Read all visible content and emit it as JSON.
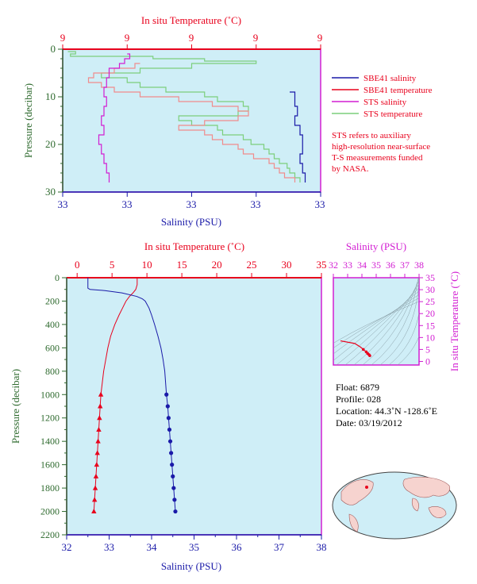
{
  "chart_data": [
    {
      "id": "near-surface",
      "type": "line",
      "top_axis": {
        "label": "In situ Temperature (˚C)",
        "ticks": [
          "9",
          "9",
          "9",
          "9",
          "9"
        ]
      },
      "bottom_axis": {
        "label": "Salinity (PSU)",
        "ticks": [
          "33",
          "33",
          "33",
          "33",
          "33"
        ]
      },
      "left_axis": {
        "label": "Pressure (decibar)",
        "ticks": [
          "0",
          "10",
          "20",
          "30"
        ],
        "range": [
          0,
          30
        ],
        "inverted": true
      },
      "legend": {
        "placement": "right",
        "entries": [
          {
            "label": "SBE41 salinity",
            "color": "#1a1aa8"
          },
          {
            "label": "SBE41 temperature",
            "color": "#e8001c"
          },
          {
            "label": "STS salinity",
            "color": "#d21ed2"
          },
          {
            "label": "STS temperature",
            "color": "#7ccf7c"
          }
        ]
      },
      "note_lines": [
        "STS refers to auxiliary",
        "high-resolution near-surface",
        "T-S measurements funded",
        "by NASA."
      ],
      "series": [
        {
          "name": "STS temperature",
          "color": "#7ccf7c",
          "pressure": [
            0.5,
            1,
            1.5,
            2,
            2.5,
            3,
            4,
            5,
            6,
            7,
            8,
            9,
            10,
            11,
            12,
            13,
            14,
            15,
            16,
            17,
            18,
            19,
            20,
            21,
            22,
            23,
            24,
            25,
            26,
            27,
            28
          ],
          "rel_x": [
            0.02,
            0.05,
            0.03,
            0.35,
            0.55,
            0.75,
            0.5,
            0.3,
            0.15,
            0.25,
            0.3,
            0.4,
            0.55,
            0.6,
            0.7,
            0.72,
            0.68,
            0.45,
            0.5,
            0.6,
            0.62,
            0.7,
            0.73,
            0.78,
            0.8,
            0.82,
            0.84,
            0.87,
            0.88,
            0.9,
            0.92
          ]
        },
        {
          "name": "SBE41 temperature",
          "color": "#f08c8c",
          "pressure": [
            3,
            4,
            5,
            6,
            7,
            8,
            9,
            10,
            11,
            12,
            13,
            14,
            15,
            16,
            17,
            18,
            19,
            20,
            21,
            22,
            23,
            24,
            25,
            26,
            27,
            28
          ],
          "rel_x": [
            0.3,
            0.28,
            0.2,
            0.12,
            0.1,
            0.15,
            0.2,
            0.3,
            0.45,
            0.58,
            0.68,
            0.72,
            0.68,
            0.55,
            0.45,
            0.55,
            0.58,
            0.62,
            0.68,
            0.7,
            0.74,
            0.8,
            0.82,
            0.84,
            0.86,
            0.9
          ]
        },
        {
          "name": "STS salinity",
          "color": "#d21ed2",
          "pressure": [
            1,
            2,
            3,
            4,
            6,
            8,
            10,
            12,
            14,
            16,
            18,
            20,
            22,
            24,
            26,
            28
          ],
          "rel_x": [
            0.25,
            0.26,
            0.24,
            0.22,
            0.18,
            0.17,
            0.16,
            0.17,
            0.16,
            0.15,
            0.16,
            0.14,
            0.15,
            0.16,
            0.17,
            0.18
          ]
        },
        {
          "name": "SBE41 salinity",
          "color": "#1a1aa8",
          "pressure": [
            9,
            12,
            14,
            16,
            18,
            20,
            22,
            24,
            26,
            28
          ],
          "rel_x": [
            0.88,
            0.9,
            0.91,
            0.9,
            0.92,
            0.93,
            0.93,
            0.92,
            0.93,
            0.94
          ]
        }
      ]
    },
    {
      "id": "full-profile",
      "type": "line",
      "top_axis": {
        "label": "In situ Temperature (˚C)",
        "ticks": [
          "0",
          "5",
          "10",
          "15",
          "20",
          "25",
          "30",
          "35"
        ],
        "range": [
          -1.5,
          35
        ]
      },
      "bottom_axis": {
        "label": "Salinity (PSU)",
        "ticks": [
          "32",
          "33",
          "34",
          "35",
          "36",
          "37",
          "38"
        ],
        "range": [
          32,
          38
        ]
      },
      "left_axis": {
        "label": "Pressure (decibar)",
        "ticks": [
          "0",
          "200",
          "400",
          "600",
          "800",
          "1000",
          "1200",
          "1400",
          "1600",
          "1800",
          "2000",
          "2200"
        ],
        "range": [
          0,
          2200
        ],
        "inverted": true
      },
      "series": [
        {
          "name": "temperature",
          "color": "#e8001c",
          "pressure": [
            0,
            20,
            40,
            60,
            80,
            100,
            130,
            160,
            200,
            260,
            320,
            400,
            500,
            600,
            700,
            800,
            900,
            1000,
            1100,
            1200,
            1300,
            1400,
            1500,
            1600,
            1700,
            1800,
            1900,
            2000
          ],
          "value": [
            8.6,
            8.6,
            8.6,
            8.6,
            8.5,
            8.4,
            8.0,
            7.5,
            7.0,
            6.5,
            6.0,
            5.4,
            4.8,
            4.4,
            4.1,
            3.8,
            3.6,
            3.4,
            3.3,
            3.2,
            3.1,
            3.0,
            2.9,
            2.8,
            2.7,
            2.6,
            2.5,
            2.4
          ]
        },
        {
          "name": "salinity",
          "color": "#1a1aa8",
          "pressure": [
            0,
            20,
            40,
            60,
            80,
            90,
            100,
            110,
            130,
            160,
            180,
            200,
            260,
            320,
            400,
            500,
            600,
            700,
            800,
            900,
            1000,
            1100,
            1200,
            1300,
            1400,
            1500,
            1600,
            1700,
            1800,
            1900,
            2000
          ],
          "value": [
            32.5,
            32.5,
            32.5,
            32.5,
            32.5,
            32.5,
            32.55,
            32.9,
            33.3,
            33.65,
            33.78,
            33.85,
            33.94,
            34.0,
            34.07,
            34.15,
            34.22,
            34.27,
            34.31,
            34.33,
            34.35,
            34.38,
            34.4,
            34.42,
            34.44,
            34.46,
            34.48,
            34.5,
            34.52,
            34.54,
            34.56
          ]
        }
      ]
    },
    {
      "id": "ts-diagram",
      "type": "line",
      "top_axis": {
        "label": "Salinity (PSU)",
        "ticks": [
          "32",
          "33",
          "34",
          "35",
          "36",
          "37",
          "38"
        ],
        "range": [
          32,
          38
        ]
      },
      "right_axis": {
        "label": "In situ Temperature (˚C)",
        "ticks": [
          "0",
          "5",
          "10",
          "15",
          "20",
          "25",
          "30",
          "35"
        ],
        "range": [
          -1.5,
          35
        ]
      },
      "series": [
        {
          "name": "T-S",
          "color": "#e8001c",
          "salinity": [
            32.5,
            33.5,
            33.9,
            34.1,
            34.3,
            34.4,
            34.5,
            34.55
          ],
          "temperature": [
            8.6,
            7.5,
            6.0,
            5.0,
            4.0,
            3.3,
            2.8,
            2.4
          ]
        }
      ]
    }
  ],
  "float_info": {
    "float": "Float:  6879",
    "profile": "Profile:  028",
    "location": "Location:  44.3˚N  -128.6˚E",
    "date": "Date:  03/19/2012"
  },
  "colors": {
    "plot_bg": "#cfeef7",
    "frame": "#d21ed2",
    "top_red": "#e8001c",
    "bottom_blue": "#1a1aa8",
    "pressure_green": "#2e6a2e"
  }
}
